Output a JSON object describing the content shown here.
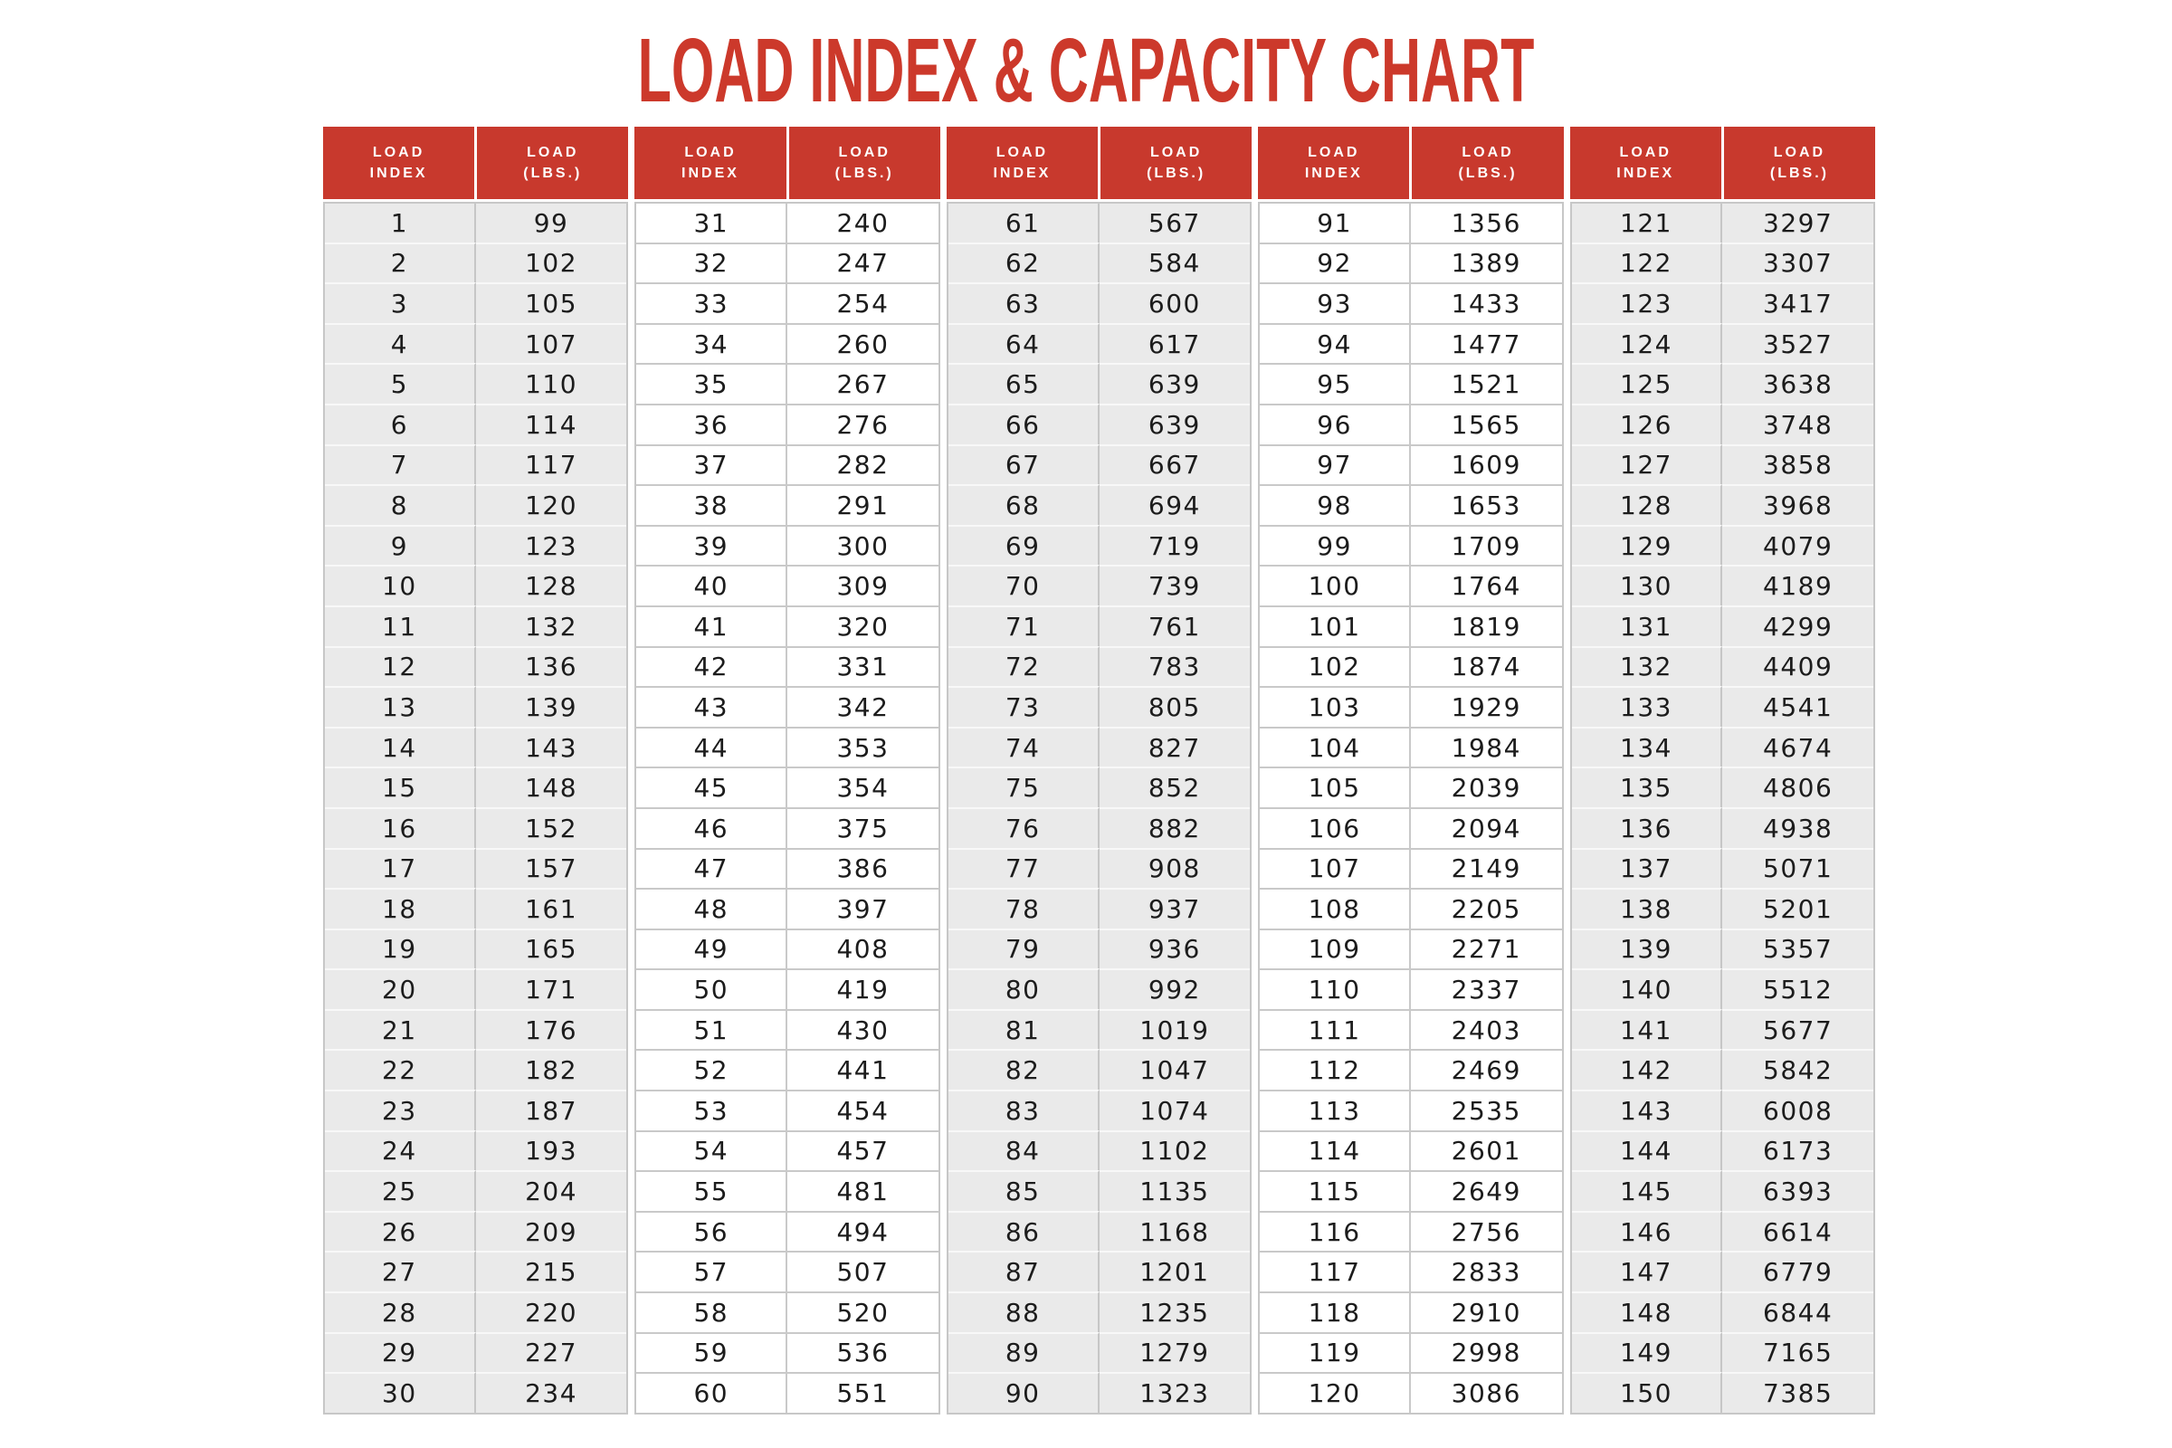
{
  "title": "LOAD INDEX & CAPACITY CHART",
  "table": {
    "index_header": "LOAD\nINDEX",
    "lbs_header": "LOAD\n(LBS.)"
  },
  "colors": {
    "accent_red": "#c8392d",
    "title_red": "#cc392b",
    "shaded_cell_bg": "#eaeaea",
    "plain_cell_bg": "#ffffff",
    "grid_line": "#c9c9c9",
    "text_dark": "#1c1c1c"
  },
  "chart_data": {
    "type": "table",
    "title": "LOAD INDEX & CAPACITY CHART",
    "column_headers": [
      "LOAD\nINDEX",
      "LOAD\n(LBS.)"
    ],
    "rows_per_column_group": 30,
    "column_groups": 5,
    "entries": [
      [
        1,
        99
      ],
      [
        2,
        102
      ],
      [
        3,
        105
      ],
      [
        4,
        107
      ],
      [
        5,
        110
      ],
      [
        6,
        114
      ],
      [
        7,
        117
      ],
      [
        8,
        120
      ],
      [
        9,
        123
      ],
      [
        10,
        128
      ],
      [
        11,
        132
      ],
      [
        12,
        136
      ],
      [
        13,
        139
      ],
      [
        14,
        143
      ],
      [
        15,
        148
      ],
      [
        16,
        152
      ],
      [
        17,
        157
      ],
      [
        18,
        161
      ],
      [
        19,
        165
      ],
      [
        20,
        171
      ],
      [
        21,
        176
      ],
      [
        22,
        182
      ],
      [
        23,
        187
      ],
      [
        24,
        193
      ],
      [
        25,
        204
      ],
      [
        26,
        209
      ],
      [
        27,
        215
      ],
      [
        28,
        220
      ],
      [
        29,
        227
      ],
      [
        30,
        234
      ],
      [
        31,
        240
      ],
      [
        32,
        247
      ],
      [
        33,
        254
      ],
      [
        34,
        260
      ],
      [
        35,
        267
      ],
      [
        36,
        276
      ],
      [
        37,
        282
      ],
      [
        38,
        291
      ],
      [
        39,
        300
      ],
      [
        40,
        309
      ],
      [
        41,
        320
      ],
      [
        42,
        331
      ],
      [
        43,
        342
      ],
      [
        44,
        353
      ],
      [
        45,
        354
      ],
      [
        46,
        375
      ],
      [
        47,
        386
      ],
      [
        48,
        397
      ],
      [
        49,
        408
      ],
      [
        50,
        419
      ],
      [
        51,
        430
      ],
      [
        52,
        441
      ],
      [
        53,
        454
      ],
      [
        54,
        457
      ],
      [
        55,
        481
      ],
      [
        56,
        494
      ],
      [
        57,
        507
      ],
      [
        58,
        520
      ],
      [
        59,
        536
      ],
      [
        60,
        551
      ],
      [
        61,
        567
      ],
      [
        62,
        584
      ],
      [
        63,
        600
      ],
      [
        64,
        617
      ],
      [
        65,
        639
      ],
      [
        66,
        639
      ],
      [
        67,
        667
      ],
      [
        68,
        694
      ],
      [
        69,
        719
      ],
      [
        70,
        739
      ],
      [
        71,
        761
      ],
      [
        72,
        783
      ],
      [
        73,
        805
      ],
      [
        74,
        827
      ],
      [
        75,
        852
      ],
      [
        76,
        882
      ],
      [
        77,
        908
      ],
      [
        78,
        937
      ],
      [
        79,
        936
      ],
      [
        80,
        992
      ],
      [
        81,
        1019
      ],
      [
        82,
        1047
      ],
      [
        83,
        1074
      ],
      [
        84,
        1102
      ],
      [
        85,
        1135
      ],
      [
        86,
        1168
      ],
      [
        87,
        1201
      ],
      [
        88,
        1235
      ],
      [
        89,
        1279
      ],
      [
        90,
        1323
      ],
      [
        91,
        1356
      ],
      [
        92,
        1389
      ],
      [
        93,
        1433
      ],
      [
        94,
        1477
      ],
      [
        95,
        1521
      ],
      [
        96,
        1565
      ],
      [
        97,
        1609
      ],
      [
        98,
        1653
      ],
      [
        99,
        1709
      ],
      [
        100,
        1764
      ],
      [
        101,
        1819
      ],
      [
        102,
        1874
      ],
      [
        103,
        1929
      ],
      [
        104,
        1984
      ],
      [
        105,
        2039
      ],
      [
        106,
        2094
      ],
      [
        107,
        2149
      ],
      [
        108,
        2205
      ],
      [
        109,
        2271
      ],
      [
        110,
        2337
      ],
      [
        111,
        2403
      ],
      [
        112,
        2469
      ],
      [
        113,
        2535
      ],
      [
        114,
        2601
      ],
      [
        115,
        2649
      ],
      [
        116,
        2756
      ],
      [
        117,
        2833
      ],
      [
        118,
        2910
      ],
      [
        119,
        2998
      ],
      [
        120,
        3086
      ],
      [
        121,
        3297
      ],
      [
        122,
        3307
      ],
      [
        123,
        3417
      ],
      [
        124,
        3527
      ],
      [
        125,
        3638
      ],
      [
        126,
        3748
      ],
      [
        127,
        3858
      ],
      [
        128,
        3968
      ],
      [
        129,
        4079
      ],
      [
        130,
        4189
      ],
      [
        131,
        4299
      ],
      [
        132,
        4409
      ],
      [
        133,
        4541
      ],
      [
        134,
        4674
      ],
      [
        135,
        4806
      ],
      [
        136,
        4938
      ],
      [
        137,
        5071
      ],
      [
        138,
        5201
      ],
      [
        139,
        5357
      ],
      [
        140,
        5512
      ],
      [
        141,
        5677
      ],
      [
        142,
        5842
      ],
      [
        143,
        6008
      ],
      [
        144,
        6173
      ],
      [
        145,
        6393
      ],
      [
        146,
        6614
      ],
      [
        147,
        6779
      ],
      [
        148,
        6844
      ],
      [
        149,
        7165
      ],
      [
        150,
        7385
      ]
    ]
  }
}
